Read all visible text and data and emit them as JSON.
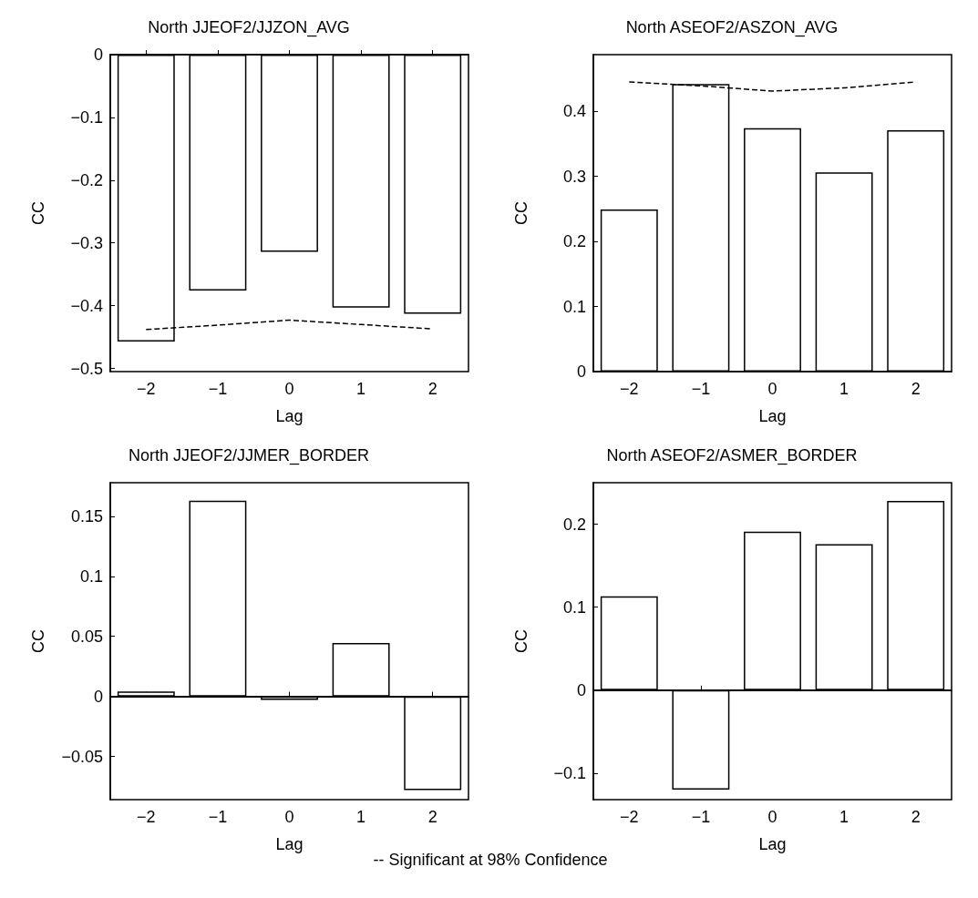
{
  "chart_data": [
    {
      "type": "bar",
      "title": "North JJEOF2/JJZON_AVG",
      "xlabel": "Lag",
      "ylabel": "CC",
      "categories": [
        "−2",
        "−1",
        "0",
        "1",
        "2"
      ],
      "ylim": [
        -0.505,
        0
      ],
      "yticks": [
        -0.5,
        -0.4,
        -0.3,
        -0.2,
        -0.1,
        0
      ],
      "marker": "none",
      "line_style": "dashed",
      "series": [
        {
          "color": "#ffffff",
          "values": [
            -0.457,
            -0.376,
            -0.314,
            -0.403,
            -0.413
          ]
        },
        {
          "type": "line",
          "color": "#000000",
          "values": [
            -0.438,
            -0.431,
            -0.423,
            -0.43,
            -0.437
          ]
        }
      ]
    },
    {
      "type": "bar",
      "title": "North ASEOF2/ASZON_AVG",
      "xlabel": "Lag",
      "ylabel": "CC",
      "categories": [
        "−2",
        "−1",
        "0",
        "1",
        "2"
      ],
      "ylim": [
        0,
        0.487
      ],
      "yticks": [
        0,
        0.1,
        0.2,
        0.3,
        0.4
      ],
      "marker": "none",
      "line_style": "dashed",
      "series": [
        {
          "color": "#ffffff",
          "values": [
            0.249,
            0.442,
            0.374,
            0.306,
            0.371
          ]
        },
        {
          "type": "line",
          "color": "#000000",
          "values": [
            0.445,
            0.439,
            0.431,
            0.436,
            0.445
          ]
        }
      ]
    },
    {
      "type": "bar",
      "title": "North JJEOF2/JJMER_BORDER",
      "xlabel": "Lag",
      "ylabel": "CC",
      "categories": [
        "−2",
        "−1",
        "0",
        "1",
        "2"
      ],
      "ylim": [
        -0.086,
        0.178
      ],
      "yticks": [
        -0.05,
        0,
        0.05,
        0.1,
        0.15
      ],
      "ref_lines": [
        {
          "axis": "y",
          "value": 0,
          "color": "#000000"
        }
      ],
      "annotations": [
        "-- Significant at 98% Confidence"
      ],
      "series": [
        {
          "color": "#ffffff",
          "values": [
            0.004,
            0.163,
            -0.003,
            0.0445,
            -0.078
          ]
        }
      ]
    },
    {
      "type": "bar",
      "title": "North ASEOF2/ASMER_BORDER",
      "xlabel": "Lag",
      "ylabel": "CC",
      "categories": [
        "−2",
        "−1",
        "0",
        "1",
        "2"
      ],
      "ylim": [
        -0.132,
        0.25
      ],
      "yticks": [
        -0.1,
        0,
        0.1,
        0.2
      ],
      "ref_lines": [
        {
          "axis": "y",
          "value": 0,
          "color": "#000000"
        }
      ],
      "series": [
        {
          "color": "#ffffff",
          "values": [
            0.113,
            -0.12,
            0.191,
            0.176,
            0.228
          ]
        }
      ]
    }
  ]
}
